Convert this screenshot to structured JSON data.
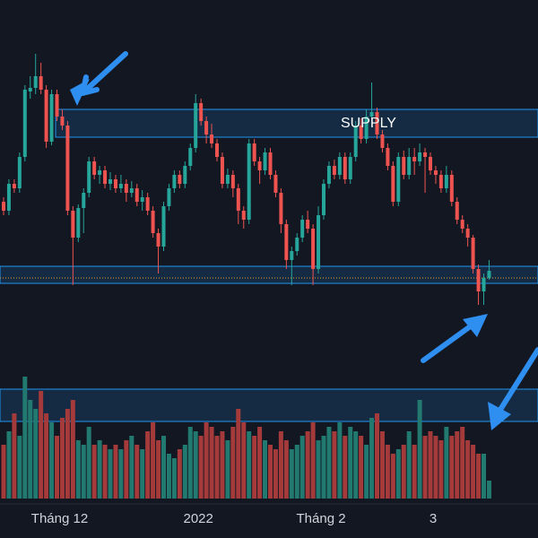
{
  "chart_data": {
    "type": "candlestick",
    "categories": [
      null,
      null,
      null,
      null,
      null,
      null,
      null,
      null,
      null,
      null,
      "Tháng 12",
      null,
      null,
      null,
      null,
      null,
      null,
      null,
      null,
      null,
      null,
      null,
      null,
      null,
      null,
      null,
      null,
      null,
      null,
      null,
      null,
      null,
      null,
      null,
      null,
      null,
      "2022",
      null,
      null,
      null,
      null,
      null,
      null,
      null,
      null,
      null,
      null,
      null,
      null,
      null,
      null,
      null,
      null,
      null,
      null,
      null,
      null,
      null,
      null,
      "Tháng 2",
      null,
      null,
      null,
      null,
      null,
      null,
      null,
      null,
      null,
      null,
      null,
      null,
      null,
      null,
      null,
      null,
      null,
      null,
      null,
      null,
      "3",
      null,
      null,
      null,
      null,
      null,
      null,
      null,
      null,
      null,
      null,
      null
    ],
    "open": [
      175,
      165,
      195,
      190,
      225,
      298,
      302,
      315,
      300,
      242,
      295,
      270,
      260,
      165,
      135,
      168,
      185,
      220,
      205,
      210,
      195,
      200,
      190,
      195,
      185,
      190,
      175,
      180,
      165,
      140,
      125,
      170,
      190,
      205,
      195,
      215,
      235,
      285,
      265,
      250,
      240,
      225,
      195,
      205,
      190,
      165,
      155,
      240,
      220,
      210,
      230,
      205,
      185,
      150,
      110,
      120,
      135,
      155,
      145,
      100,
      160,
      195,
      215,
      205,
      225,
      200,
      225,
      260,
      245,
      270,
      275,
      250,
      235,
      215,
      175,
      225,
      205,
      225,
      220,
      230,
      225,
      210,
      205,
      190,
      205,
      175,
      155,
      145,
      135,
      100,
      75,
      90
    ],
    "high": [
      180,
      200,
      200,
      230,
      305,
      315,
      340,
      330,
      305,
      300,
      300,
      278,
      265,
      170,
      172,
      190,
      225,
      225,
      215,
      215,
      208,
      205,
      205,
      200,
      198,
      195,
      188,
      185,
      170,
      145,
      175,
      195,
      210,
      210,
      220,
      240,
      295,
      290,
      270,
      262,
      245,
      230,
      212,
      210,
      195,
      170,
      245,
      245,
      225,
      235,
      235,
      210,
      190,
      155,
      125,
      140,
      160,
      165,
      150,
      170,
      200,
      220,
      222,
      230,
      230,
      230,
      265,
      268,
      278,
      308,
      280,
      255,
      240,
      220,
      230,
      232,
      235,
      235,
      240,
      235,
      230,
      215,
      210,
      215,
      210,
      180,
      160,
      150,
      138,
      105,
      95,
      110
    ],
    "low": [
      160,
      160,
      185,
      185,
      220,
      290,
      295,
      295,
      235,
      238,
      265,
      255,
      160,
      82,
      130,
      140,
      180,
      200,
      195,
      190,
      188,
      185,
      185,
      175,
      180,
      170,
      165,
      160,
      135,
      95,
      120,
      165,
      185,
      190,
      190,
      210,
      230,
      260,
      240,
      235,
      220,
      190,
      190,
      180,
      150,
      145,
      150,
      215,
      195,
      205,
      200,
      180,
      140,
      100,
      82,
      115,
      130,
      140,
      82,
      95,
      155,
      190,
      200,
      200,
      195,
      195,
      220,
      240,
      240,
      265,
      245,
      230,
      210,
      170,
      170,
      200,
      200,
      205,
      215,
      185,
      205,
      195,
      185,
      185,
      170,
      150,
      140,
      125,
      95,
      60,
      60,
      88
    ],
    "close": [
      165,
      195,
      190,
      225,
      300,
      302,
      315,
      300,
      242,
      295,
      270,
      260,
      165,
      135,
      168,
      185,
      220,
      205,
      210,
      195,
      200,
      190,
      195,
      185,
      190,
      175,
      180,
      165,
      140,
      125,
      170,
      190,
      205,
      195,
      215,
      235,
      285,
      265,
      250,
      240,
      225,
      195,
      205,
      190,
      165,
      155,
      240,
      220,
      210,
      230,
      205,
      185,
      150,
      110,
      120,
      135,
      155,
      145,
      100,
      160,
      195,
      215,
      205,
      225,
      200,
      225,
      260,
      245,
      270,
      275,
      250,
      235,
      215,
      175,
      225,
      205,
      225,
      220,
      230,
      225,
      210,
      205,
      190,
      205,
      175,
      155,
      145,
      135,
      100,
      75,
      90,
      98
    ],
    "volume": [
      60,
      75,
      95,
      70,
      136,
      110,
      100,
      120,
      95,
      85,
      70,
      90,
      100,
      110,
      65,
      60,
      80,
      60,
      65,
      60,
      55,
      60,
      55,
      65,
      70,
      60,
      55,
      75,
      85,
      65,
      70,
      50,
      45,
      55,
      60,
      80,
      75,
      70,
      85,
      80,
      70,
      75,
      65,
      80,
      100,
      85,
      75,
      70,
      80,
      65,
      60,
      55,
      75,
      65,
      55,
      60,
      70,
      75,
      85,
      65,
      70,
      80,
      75,
      85,
      70,
      80,
      75,
      70,
      60,
      90,
      95,
      75,
      60,
      50,
      55,
      60,
      75,
      60,
      110,
      70,
      75,
      70,
      65,
      80,
      70,
      75,
      80,
      65,
      60,
      50,
      50,
      20
    ],
    "up_color": "#26a69a",
    "down_color": "#ef5350",
    "volume_up_color": "#22796f",
    "volume_down_color": "#a53a3b",
    "ylim": [
      0,
      400
    ],
    "volume_lim": [
      0,
      180
    ],
    "zones": [
      {
        "low": 247,
        "high": 278
      },
      {
        "low": 84,
        "high": 103
      }
    ],
    "volume_zones": [
      {
        "low": 86,
        "high": 122
      }
    ],
    "price_line": 90,
    "annotations": [
      {
        "text": "SUPPLY"
      }
    ]
  }
}
